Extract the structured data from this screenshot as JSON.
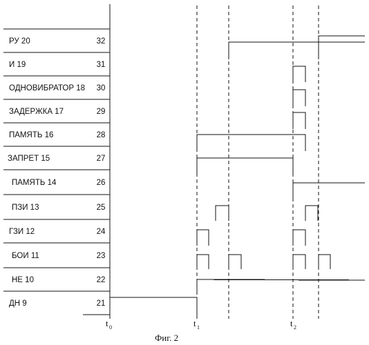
{
  "figure": {
    "caption": "Фиг. 2",
    "time_marks": [
      {
        "base": "t",
        "sub": "0"
      },
      {
        "base": "t",
        "sub": "1"
      },
      {
        "base": "t",
        "sub": "2"
      }
    ],
    "signals": [
      {
        "label": "РУ  20",
        "number": "32"
      },
      {
        "label": "И 19",
        "number": "31"
      },
      {
        "label": "ОДНОВИБРАТОР 18",
        "number": "30"
      },
      {
        "label": "ЗАДЕРЖКА 17",
        "number": "29"
      },
      {
        "label": "ПАМЯТЬ  16",
        "number": "28"
      },
      {
        "label": "ЗАПРЕТ  15",
        "number": "27"
      },
      {
        "label": "ПАМЯТЬ  14",
        "number": "26"
      },
      {
        "label": "ПЗИ 13",
        "number": "25"
      },
      {
        "label": "ГЗИ 12",
        "number": "24"
      },
      {
        "label": "БОИ 11",
        "number": "23"
      },
      {
        "label": "НЕ 10",
        "number": "22"
      },
      {
        "label": "ДН 9",
        "number": "21"
      }
    ]
  }
}
